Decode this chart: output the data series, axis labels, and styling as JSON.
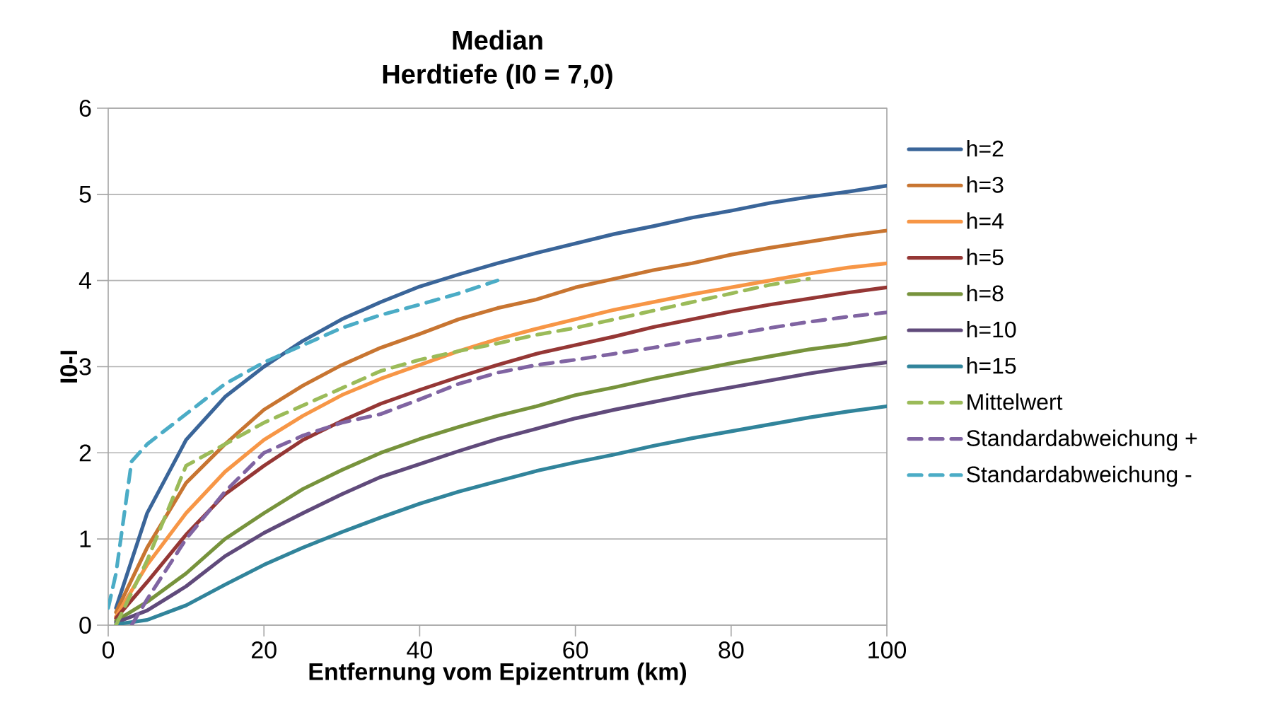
{
  "chart_data": {
    "type": "line",
    "title": "Median",
    "subtitle": "Herdtiefe (I0 = 7,0)",
    "xlabel": "Entfernung vom Epizentrum (km)",
    "ylabel": "I0-I",
    "xlim": [
      0,
      100
    ],
    "xticks": [
      0,
      20,
      40,
      60,
      80,
      100
    ],
    "ylim": [
      0,
      6
    ],
    "yticks": [
      0,
      1,
      2,
      3,
      4,
      5,
      6
    ],
    "grid": "y",
    "legend": "right",
    "line_style": "solid",
    "series": [
      {
        "name": "h=2",
        "color": "#3a6599",
        "x": [
          1,
          5,
          10,
          15,
          20,
          25,
          30,
          35,
          40,
          45,
          50,
          55,
          60,
          65,
          70,
          75,
          80,
          85,
          90,
          95,
          100
        ],
        "values": [
          0.2,
          1.3,
          2.15,
          2.65,
          3.0,
          3.3,
          3.55,
          3.75,
          3.93,
          4.07,
          4.2,
          4.32,
          4.43,
          4.54,
          4.63,
          4.73,
          4.81,
          4.9,
          4.97,
          5.03,
          5.1
        ]
      },
      {
        "name": "h=3",
        "color": "#c87531",
        "x": [
          1,
          5,
          10,
          15,
          20,
          25,
          30,
          35,
          40,
          45,
          50,
          55,
          60,
          65,
          70,
          75,
          80,
          85,
          90,
          95,
          100
        ],
        "values": [
          0.15,
          0.9,
          1.65,
          2.1,
          2.5,
          2.78,
          3.02,
          3.22,
          3.38,
          3.55,
          3.68,
          3.78,
          3.92,
          4.02,
          4.12,
          4.2,
          4.3,
          4.38,
          4.45,
          4.52,
          4.58
        ]
      },
      {
        "name": "h=4",
        "color": "#f79646",
        "x": [
          1,
          5,
          10,
          15,
          20,
          25,
          30,
          35,
          40,
          45,
          50,
          55,
          60,
          65,
          70,
          75,
          80,
          85,
          90,
          95,
          100
        ],
        "values": [
          0.1,
          0.7,
          1.3,
          1.78,
          2.15,
          2.43,
          2.67,
          2.86,
          3.02,
          3.18,
          3.32,
          3.44,
          3.55,
          3.66,
          3.75,
          3.84,
          3.92,
          4.0,
          4.08,
          4.15,
          4.2
        ]
      },
      {
        "name": "h=5",
        "color": "#953735",
        "x": [
          1,
          5,
          10,
          15,
          20,
          25,
          30,
          35,
          40,
          45,
          50,
          55,
          60,
          65,
          70,
          75,
          80,
          85,
          90,
          95,
          100
        ],
        "values": [
          0.08,
          0.5,
          1.05,
          1.52,
          1.85,
          2.15,
          2.37,
          2.57,
          2.73,
          2.88,
          3.02,
          3.15,
          3.25,
          3.35,
          3.46,
          3.55,
          3.64,
          3.72,
          3.79,
          3.86,
          3.92
        ]
      },
      {
        "name": "h=8",
        "color": "#77933c",
        "x": [
          1,
          5,
          10,
          15,
          20,
          25,
          30,
          35,
          40,
          45,
          50,
          55,
          60,
          65,
          70,
          75,
          80,
          85,
          90,
          95,
          100
        ],
        "values": [
          0.05,
          0.27,
          0.6,
          1.0,
          1.3,
          1.58,
          1.8,
          2.0,
          2.16,
          2.3,
          2.43,
          2.54,
          2.67,
          2.76,
          2.86,
          2.95,
          3.04,
          3.12,
          3.2,
          3.26,
          3.34
        ]
      },
      {
        "name": "h=10",
        "color": "#604a7b",
        "x": [
          1,
          5,
          10,
          15,
          20,
          25,
          30,
          35,
          40,
          45,
          50,
          55,
          60,
          65,
          70,
          75,
          80,
          85,
          90,
          95,
          100
        ],
        "values": [
          0.03,
          0.17,
          0.45,
          0.8,
          1.07,
          1.3,
          1.52,
          1.72,
          1.87,
          2.02,
          2.16,
          2.28,
          2.4,
          2.5,
          2.59,
          2.68,
          2.76,
          2.84,
          2.92,
          2.99,
          3.05
        ]
      },
      {
        "name": "h=15",
        "color": "#31849b",
        "x": [
          1,
          5,
          10,
          15,
          20,
          25,
          30,
          35,
          40,
          45,
          50,
          55,
          60,
          65,
          70,
          75,
          80,
          85,
          90,
          95,
          100
        ],
        "values": [
          0.01,
          0.06,
          0.23,
          0.47,
          0.7,
          0.9,
          1.08,
          1.25,
          1.41,
          1.55,
          1.67,
          1.79,
          1.89,
          1.98,
          2.08,
          2.17,
          2.25,
          2.33,
          2.41,
          2.48,
          2.54
        ]
      },
      {
        "name": "Mittelwert",
        "color": "#9bbb59",
        "line_style": "dashed",
        "x": [
          1,
          5,
          10,
          15,
          20,
          25,
          30,
          35,
          40,
          45,
          50,
          55,
          60,
          65,
          70,
          75,
          80,
          85,
          90
        ],
        "values": [
          0,
          0.75,
          1.85,
          2.1,
          2.35,
          2.55,
          2.75,
          2.95,
          3.08,
          3.18,
          3.27,
          3.37,
          3.45,
          3.55,
          3.65,
          3.75,
          3.85,
          3.95,
          4.02
        ]
      },
      {
        "name": "Standardabweichung +",
        "color": "#8064a2",
        "line_style": "dashed",
        "x": [
          3,
          5,
          10,
          15,
          20,
          25,
          30,
          35,
          40,
          45,
          50,
          55,
          60,
          65,
          70,
          75,
          80,
          85,
          90,
          95,
          100
        ],
        "values": [
          0,
          0.3,
          1.0,
          1.55,
          2.0,
          2.2,
          2.35,
          2.45,
          2.62,
          2.8,
          2.93,
          3.02,
          3.08,
          3.15,
          3.22,
          3.3,
          3.37,
          3.45,
          3.52,
          3.58,
          3.63
        ]
      },
      {
        "name": "Standardabweichung -",
        "color": "#4bacc6",
        "line_style": "dashed",
        "x": [
          0,
          1,
          3,
          5,
          10,
          15,
          20,
          25,
          30,
          35,
          40,
          45,
          50
        ],
        "values": [
          0.2,
          0.6,
          1.9,
          2.1,
          2.45,
          2.8,
          3.05,
          3.25,
          3.45,
          3.6,
          3.72,
          3.85,
          4.0
        ]
      }
    ]
  }
}
